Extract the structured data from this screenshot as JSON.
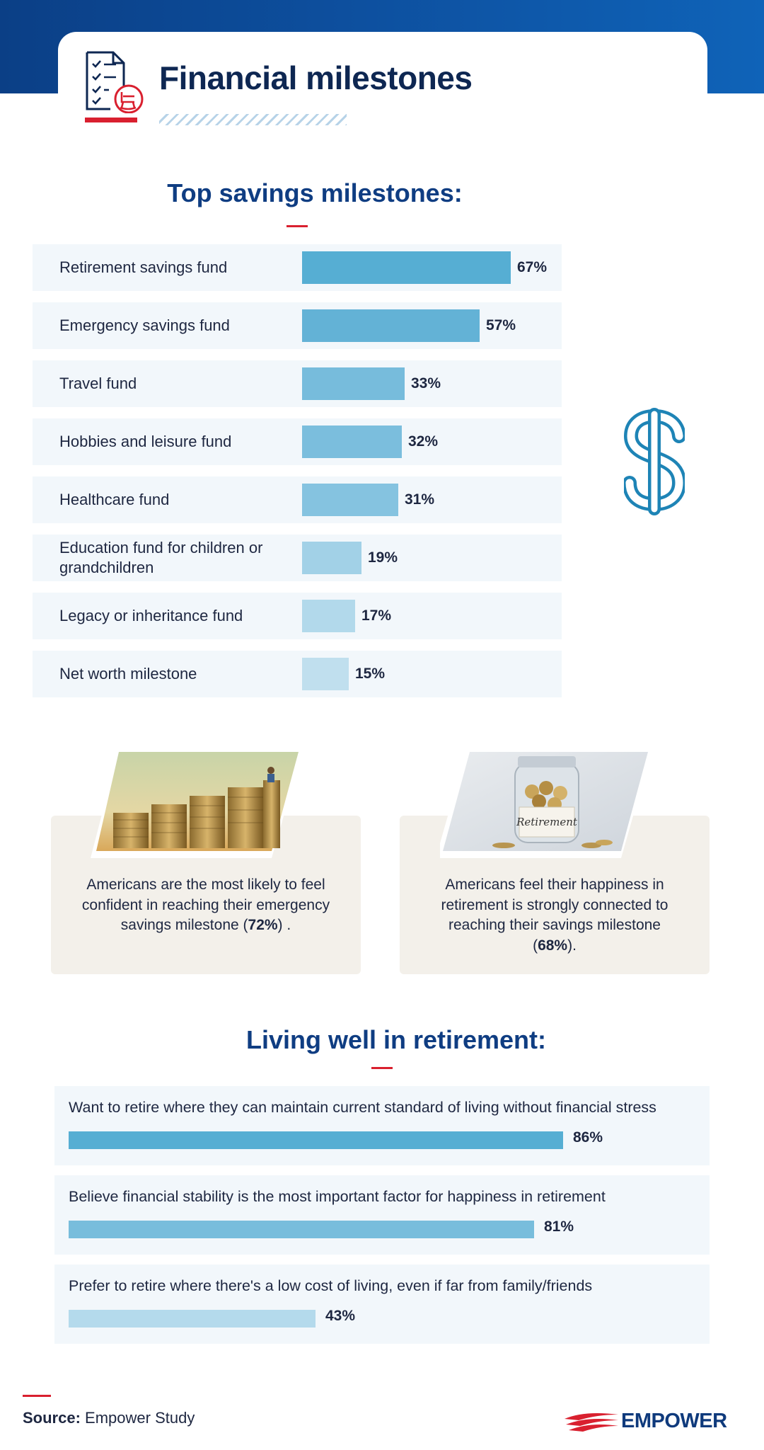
{
  "header": {
    "title": "Financial milestones",
    "icon": "checklist-rocking-chair-icon"
  },
  "colors": {
    "navy": "#0e2752",
    "heading_blue": "#0f3d82",
    "accent_red": "#d9202f",
    "row_bg": "#f2f7fb",
    "card_bg": "#f3f0ea"
  },
  "chart_data": [
    {
      "type": "bar",
      "orientation": "horizontal",
      "title": "Top savings milestones:",
      "categories": [
        "Retirement savings fund",
        "Emergency savings fund",
        "Travel fund",
        "Hobbies and leisure fund",
        "Healthcare fund",
        "Education fund for children or grandchildren",
        "Legacy or inheritance fund",
        "Net worth milestone"
      ],
      "values": [
        67,
        57,
        33,
        32,
        31,
        19,
        17,
        15
      ],
      "value_labels": [
        "67%",
        "57%",
        "33%",
        "32%",
        "31%",
        "19%",
        "17%",
        "15%"
      ],
      "unit": "%",
      "xlim": [
        0,
        100
      ],
      "grid": false,
      "bar_colors": [
        "#56aed3",
        "#63b2d6",
        "#77bcdc",
        "#7bbedd",
        "#85c3e0",
        "#a2d1e7",
        "#b2d9eb",
        "#c0dfee"
      ]
    },
    {
      "type": "bar",
      "orientation": "horizontal",
      "title": "Living well in retirement:",
      "categories": [
        "Want to retire where they can maintain current standard of living without financial stress",
        "Believe financial stability is the most important factor for happiness in retirement",
        "Prefer to retire where there's a low cost of living, even if far from family/friends"
      ],
      "values": [
        86,
        81,
        43
      ],
      "value_labels": [
        "86%",
        "81%",
        "43%"
      ],
      "unit": "%",
      "xlim": [
        0,
        100
      ],
      "grid": false,
      "bar_colors": [
        "#56aed3",
        "#78bddc",
        "#b4daec"
      ]
    }
  ],
  "callouts": [
    {
      "text_before": "Americans are the most likely to feel confident in reaching their emergency savings milestone (",
      "highlight": "72%",
      "text_after": ") .",
      "image": "stacked-coins-photo"
    },
    {
      "text_before": "Americans feel their happiness in retirement is strongly connected to reaching their savings milestone (",
      "highlight": "68%",
      "text_after": ").",
      "image": "retirement-coin-jar-photo",
      "jar_label": "Retirement"
    }
  ],
  "decorations": {
    "side_icon": "dollar-sign-icon"
  },
  "footer": {
    "source_label": "Source:",
    "source_text": "Empower Study",
    "logo_text": "EMPOWER"
  }
}
